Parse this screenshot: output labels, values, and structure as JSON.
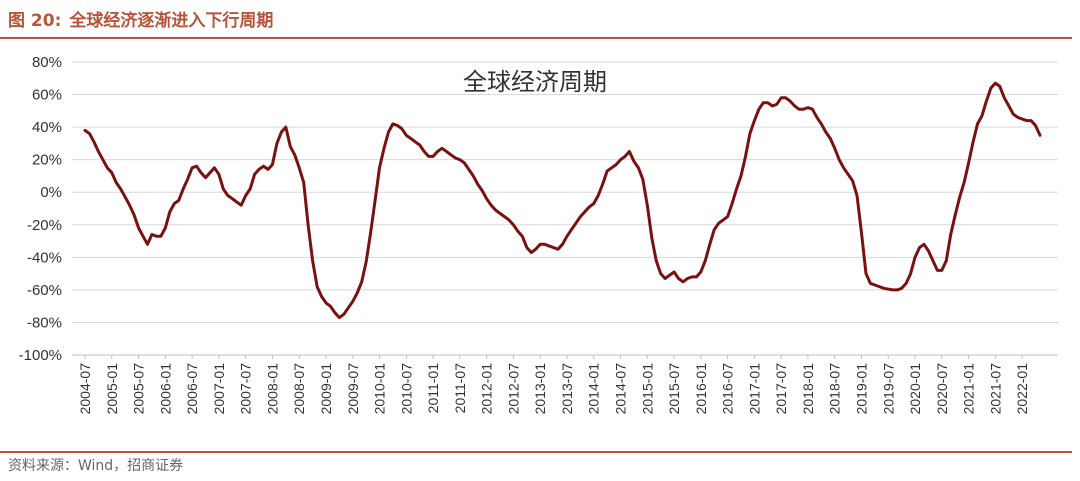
{
  "header": {
    "figure_no": "图 20:",
    "title": "全球经济逐渐进入下行周期"
  },
  "source": "资料来源：Wind，招商证券",
  "colors": {
    "accent": "#b9543a",
    "series": "#7a1111",
    "grid": "#d9d9d9"
  },
  "chart_data": {
    "type": "line",
    "title": "全球经济周期",
    "xlabel": "",
    "ylabel": "",
    "ylim": [
      -100,
      80
    ],
    "yticks": [
      80,
      60,
      40,
      20,
      0,
      -20,
      -40,
      -60,
      -80,
      -100
    ],
    "ytick_labels": [
      "80%",
      "60%",
      "40%",
      "20%",
      "0%",
      "-20%",
      "-40%",
      "-60%",
      "-80%",
      "-100%"
    ],
    "grid": "horizontal",
    "legend": "none",
    "xticks": [
      "2004-07",
      "2005-01",
      "2005-07",
      "2006-01",
      "2006-07",
      "2007-01",
      "2007-07",
      "2008-01",
      "2008-07",
      "2009-01",
      "2009-07",
      "2010-01",
      "2010-07",
      "2011-01",
      "2011-07",
      "2012-01",
      "2012-07",
      "2013-01",
      "2013-07",
      "2014-01",
      "2014-07",
      "2015-01",
      "2015-07",
      "2016-01",
      "2016-07",
      "2017-01",
      "2017-07",
      "2018-01",
      "2018-07",
      "2019-01",
      "2019-07",
      "2020-01",
      "2020-07",
      "2021-01",
      "2021-07",
      "2022-01"
    ],
    "series": [
      {
        "unit": "%",
        "points": [
          [
            "2004-07",
            38
          ],
          [
            "2004-08",
            36
          ],
          [
            "2004-09",
            31
          ],
          [
            "2004-10",
            25
          ],
          [
            "2004-11",
            20
          ],
          [
            "2004-12",
            15
          ],
          [
            "2005-01",
            12
          ],
          [
            "2005-02",
            6
          ],
          [
            "2005-03",
            2
          ],
          [
            "2005-04",
            -3
          ],
          [
            "2005-05",
            -8
          ],
          [
            "2005-06",
            -14
          ],
          [
            "2005-07",
            -22
          ],
          [
            "2005-08",
            -27
          ],
          [
            "2005-09",
            -32
          ],
          [
            "2005-10",
            -26
          ],
          [
            "2005-11",
            -27
          ],
          [
            "2005-12",
            -27
          ],
          [
            "2006-01",
            -22
          ],
          [
            "2006-02",
            -12
          ],
          [
            "2006-03",
            -7
          ],
          [
            "2006-04",
            -5
          ],
          [
            "2006-05",
            2
          ],
          [
            "2006-06",
            8
          ],
          [
            "2006-07",
            15
          ],
          [
            "2006-08",
            16
          ],
          [
            "2006-09",
            12
          ],
          [
            "2006-10",
            9
          ],
          [
            "2006-11",
            12
          ],
          [
            "2006-12",
            15
          ],
          [
            "2007-01",
            11
          ],
          [
            "2007-02",
            2
          ],
          [
            "2007-03",
            -2
          ],
          [
            "2007-04",
            -4
          ],
          [
            "2007-05",
            -6
          ],
          [
            "2007-06",
            -8
          ],
          [
            "2007-07",
            -2
          ],
          [
            "2007-08",
            2
          ],
          [
            "2007-09",
            11
          ],
          [
            "2007-10",
            14
          ],
          [
            "2007-11",
            16
          ],
          [
            "2007-12",
            14
          ],
          [
            "2008-01",
            17
          ],
          [
            "2008-02",
            30
          ],
          [
            "2008-03",
            37
          ],
          [
            "2008-04",
            40
          ],
          [
            "2008-05",
            28
          ],
          [
            "2008-06",
            23
          ],
          [
            "2008-07",
            15
          ],
          [
            "2008-08",
            6
          ],
          [
            "2008-09",
            -20
          ],
          [
            "2008-10",
            -42
          ],
          [
            "2008-11",
            -58
          ],
          [
            "2008-12",
            -64
          ],
          [
            "2009-01",
            -68
          ],
          [
            "2009-02",
            -70
          ],
          [
            "2009-03",
            -74
          ],
          [
            "2009-04",
            -77
          ],
          [
            "2009-05",
            -75
          ],
          [
            "2009-06",
            -71
          ],
          [
            "2009-07",
            -67
          ],
          [
            "2009-08",
            -62
          ],
          [
            "2009-09",
            -55
          ],
          [
            "2009-10",
            -43
          ],
          [
            "2009-11",
            -25
          ],
          [
            "2009-12",
            -5
          ],
          [
            "2010-01",
            15
          ],
          [
            "2010-02",
            27
          ],
          [
            "2010-03",
            37
          ],
          [
            "2010-04",
            42
          ],
          [
            "2010-05",
            41
          ],
          [
            "2010-06",
            39
          ],
          [
            "2010-07",
            35
          ],
          [
            "2010-08",
            33
          ],
          [
            "2010-09",
            31
          ],
          [
            "2010-10",
            29
          ],
          [
            "2010-11",
            25
          ],
          [
            "2010-12",
            22
          ],
          [
            "2011-01",
            22
          ],
          [
            "2011-02",
            25
          ],
          [
            "2011-03",
            27
          ],
          [
            "2011-04",
            25
          ],
          [
            "2011-05",
            23
          ],
          [
            "2011-06",
            21
          ],
          [
            "2011-07",
            20
          ],
          [
            "2011-08",
            18
          ],
          [
            "2011-09",
            14
          ],
          [
            "2011-10",
            10
          ],
          [
            "2011-11",
            5
          ],
          [
            "2011-12",
            1
          ],
          [
            "2012-01",
            -4
          ],
          [
            "2012-02",
            -8
          ],
          [
            "2012-03",
            -11
          ],
          [
            "2012-04",
            -13
          ],
          [
            "2012-05",
            -15
          ],
          [
            "2012-06",
            -17
          ],
          [
            "2012-07",
            -20
          ],
          [
            "2012-08",
            -24
          ],
          [
            "2012-09",
            -27
          ],
          [
            "2012-10",
            -34
          ],
          [
            "2012-11",
            -37
          ],
          [
            "2012-12",
            -35
          ],
          [
            "2013-01",
            -32
          ],
          [
            "2013-02",
            -32
          ],
          [
            "2013-03",
            -33
          ],
          [
            "2013-04",
            -34
          ],
          [
            "2013-05",
            -35
          ],
          [
            "2013-06",
            -32
          ],
          [
            "2013-07",
            -27
          ],
          [
            "2013-08",
            -23
          ],
          [
            "2013-09",
            -19
          ],
          [
            "2013-10",
            -15
          ],
          [
            "2013-11",
            -12
          ],
          [
            "2013-12",
            -9
          ],
          [
            "2014-01",
            -7
          ],
          [
            "2014-02",
            -2
          ],
          [
            "2014-03",
            5
          ],
          [
            "2014-04",
            13
          ],
          [
            "2014-05",
            15
          ],
          [
            "2014-06",
            17
          ],
          [
            "2014-07",
            20
          ],
          [
            "2014-08",
            22
          ],
          [
            "2014-09",
            25
          ],
          [
            "2014-10",
            19
          ],
          [
            "2014-11",
            15
          ],
          [
            "2014-12",
            8
          ],
          [
            "2015-01",
            -8
          ],
          [
            "2015-02",
            -28
          ],
          [
            "2015-03",
            -42
          ],
          [
            "2015-04",
            -50
          ],
          [
            "2015-05",
            -53
          ],
          [
            "2015-06",
            -51
          ],
          [
            "2015-07",
            -49
          ],
          [
            "2015-08",
            -53
          ],
          [
            "2015-09",
            -55
          ],
          [
            "2015-10",
            -53
          ],
          [
            "2015-11",
            -52
          ],
          [
            "2015-12",
            -52
          ],
          [
            "2016-01",
            -49
          ],
          [
            "2016-02",
            -42
          ],
          [
            "2016-03",
            -32
          ],
          [
            "2016-04",
            -23
          ],
          [
            "2016-05",
            -19
          ],
          [
            "2016-06",
            -17
          ],
          [
            "2016-07",
            -15
          ],
          [
            "2016-08",
            -7
          ],
          [
            "2016-09",
            2
          ],
          [
            "2016-10",
            10
          ],
          [
            "2016-11",
            22
          ],
          [
            "2016-12",
            36
          ],
          [
            "2017-01",
            44
          ],
          [
            "2017-02",
            51
          ],
          [
            "2017-03",
            55
          ],
          [
            "2017-04",
            55
          ],
          [
            "2017-05",
            53
          ],
          [
            "2017-06",
            54
          ],
          [
            "2017-07",
            58
          ],
          [
            "2017-08",
            58
          ],
          [
            "2017-09",
            56
          ],
          [
            "2017-10",
            53
          ],
          [
            "2017-11",
            51
          ],
          [
            "2017-12",
            51
          ],
          [
            "2018-01",
            52
          ],
          [
            "2018-02",
            51
          ],
          [
            "2018-03",
            46
          ],
          [
            "2018-04",
            42
          ],
          [
            "2018-05",
            37
          ],
          [
            "2018-06",
            33
          ],
          [
            "2018-07",
            27
          ],
          [
            "2018-08",
            20
          ],
          [
            "2018-09",
            15
          ],
          [
            "2018-10",
            11
          ],
          [
            "2018-11",
            7
          ],
          [
            "2018-12",
            -2
          ],
          [
            "2019-01",
            -25
          ],
          [
            "2019-02",
            -50
          ],
          [
            "2019-03",
            -56
          ],
          [
            "2019-04",
            -57
          ],
          [
            "2019-05",
            -58
          ],
          [
            "2019-06",
            -59
          ],
          [
            "2019-07",
            -59.5
          ],
          [
            "2019-08",
            -60
          ],
          [
            "2019-09",
            -60
          ],
          [
            "2019-10",
            -59
          ],
          [
            "2019-11",
            -56
          ],
          [
            "2019-12",
            -50
          ],
          [
            "2020-01",
            -40
          ],
          [
            "2020-02",
            -34
          ],
          [
            "2020-03",
            -32
          ],
          [
            "2020-04",
            -36
          ],
          [
            "2020-05",
            -42
          ],
          [
            "2020-06",
            -48
          ],
          [
            "2020-07",
            -48
          ],
          [
            "2020-08",
            -42
          ],
          [
            "2020-09",
            -26
          ],
          [
            "2020-10",
            -14
          ],
          [
            "2020-11",
            -3
          ],
          [
            "2020-12",
            6
          ],
          [
            "2021-01",
            18
          ],
          [
            "2021-02",
            31
          ],
          [
            "2021-03",
            42
          ],
          [
            "2021-04",
            47
          ],
          [
            "2021-05",
            56
          ],
          [
            "2021-06",
            64
          ],
          [
            "2021-07",
            67
          ],
          [
            "2021-08",
            65
          ],
          [
            "2021-09",
            58
          ],
          [
            "2021-10",
            53
          ],
          [
            "2021-11",
            48
          ],
          [
            "2021-12",
            46
          ],
          [
            "2022-01",
            45
          ],
          [
            "2022-02",
            44
          ],
          [
            "2022-03",
            44
          ],
          [
            "2022-04",
            41
          ],
          [
            "2022-05",
            35
          ]
        ]
      }
    ]
  }
}
